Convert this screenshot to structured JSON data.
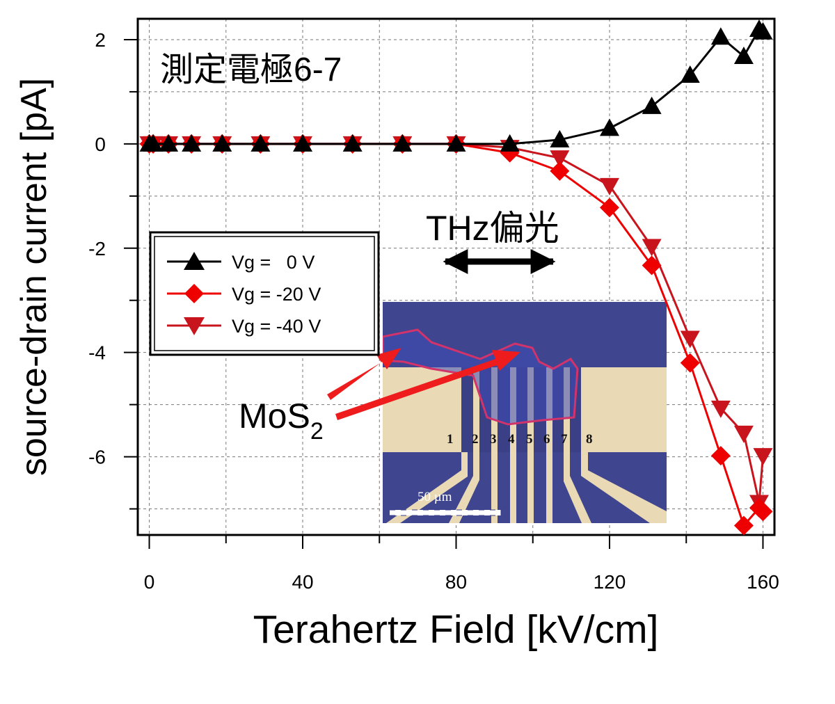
{
  "chart_data": {
    "type": "line",
    "xlabel": "Terahertz Field [kV/cm]",
    "ylabel": "source-drain current [pA]",
    "xlim": [
      -3,
      163
    ],
    "ylim": [
      -7.5,
      2.4
    ],
    "xticks": [
      0,
      40,
      80,
      120,
      160
    ],
    "yticks": [
      2,
      0,
      -2,
      -4,
      -6
    ],
    "grid": true,
    "legend_position": "left",
    "series": [
      {
        "name": "Vg =   0 V",
        "marker": "triangle-up",
        "color": "#000000",
        "x": [
          0,
          1,
          5,
          11,
          19,
          29,
          40,
          53,
          66,
          80,
          94,
          107,
          120,
          131,
          141,
          149,
          155,
          159,
          160
        ],
        "y": [
          0,
          0,
          0,
          0,
          0,
          0,
          0,
          0,
          0,
          0,
          0,
          0.08,
          0.3,
          0.72,
          1.32,
          2.05,
          1.68,
          2.2,
          2.15
        ]
      },
      {
        "name": "Vg = -20 V",
        "marker": "diamond",
        "color": "#ee0000",
        "x": [
          0,
          1,
          5,
          11,
          19,
          29,
          40,
          53,
          66,
          80,
          94,
          107,
          120,
          131,
          141,
          149,
          155,
          159,
          160
        ],
        "y": [
          0,
          0,
          0,
          0,
          0,
          0,
          0,
          0,
          0,
          0,
          -0.17,
          -0.52,
          -1.22,
          -2.33,
          -4.2,
          -5.98,
          -7.32,
          -6.98,
          -7.05
        ]
      },
      {
        "name": "Vg = -40 V",
        "marker": "triangle-down",
        "color": "#c8141c",
        "x": [
          0,
          1,
          5,
          11,
          19,
          29,
          40,
          53,
          66,
          80,
          94,
          107,
          120,
          131,
          141,
          149,
          155,
          159,
          160
        ],
        "y": [
          0,
          0,
          0,
          0,
          0,
          0,
          0,
          0,
          0,
          0,
          -0.07,
          -0.27,
          -0.8,
          -1.97,
          -3.73,
          -5.07,
          -5.55,
          -6.88,
          -5.98
        ]
      }
    ]
  },
  "annotations": {
    "electrode_label": "測定電極6-7",
    "polarization_label": "THz偏光",
    "material_label": "MoS",
    "material_subscript": "2",
    "electrode_numbers": [
      "1",
      "2",
      "3",
      "4",
      "5",
      "6",
      "7",
      "8"
    ],
    "scale_bar": "50 µm"
  }
}
